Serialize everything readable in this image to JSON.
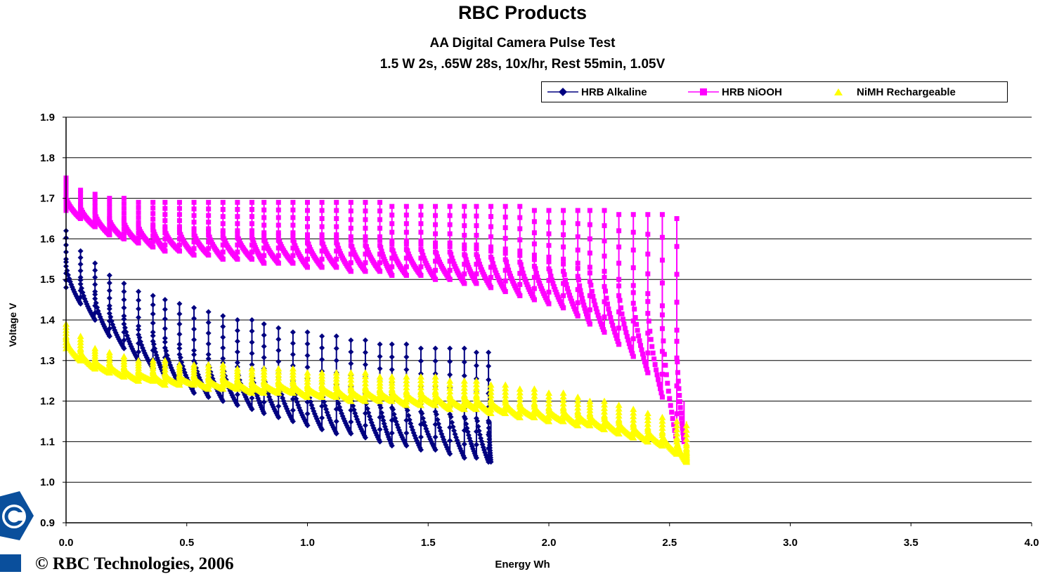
{
  "chart_data": {
    "type": "line",
    "title": "RBC Products",
    "subtitle": "AA Digital Camera Pulse Test",
    "subtitle2": "1.5 W 2s, .65W 28s, 10x/hr, Rest 55min, 1.05V",
    "xlabel": "Energy Wh",
    "ylabel": "Voltage V",
    "xlim": [
      0.0,
      4.0
    ],
    "ylim": [
      0.9,
      1.9
    ],
    "x_ticks": [
      "0.0",
      "0.5",
      "1.0",
      "1.5",
      "2.0",
      "2.5",
      "3.0",
      "3.5",
      "4.0"
    ],
    "y_ticks": [
      "0.9",
      "1.0",
      "1.1",
      "1.2",
      "1.3",
      "1.4",
      "1.5",
      "1.6",
      "1.7",
      "1.8",
      "1.9"
    ],
    "grid": "horizontal",
    "legend_position": "top-right",
    "series": [
      {
        "name": "HRB Alkaline",
        "color": "#000080",
        "marker": "diamond",
        "x_end": 1.76,
        "peak_x": [
          0.0,
          0.06,
          0.12,
          0.18,
          0.24,
          0.3,
          0.36,
          0.41,
          0.47,
          0.53,
          0.59,
          0.65,
          0.71,
          0.77,
          0.82,
          0.88,
          0.94,
          1.0,
          1.06,
          1.12,
          1.18,
          1.24,
          1.3,
          1.35,
          1.41,
          1.47,
          1.53,
          1.59,
          1.65,
          1.7,
          1.75
        ],
        "peak_y": [
          1.62,
          1.57,
          1.54,
          1.51,
          1.49,
          1.47,
          1.46,
          1.45,
          1.44,
          1.43,
          1.42,
          1.41,
          1.4,
          1.4,
          1.39,
          1.38,
          1.37,
          1.37,
          1.36,
          1.36,
          1.35,
          1.35,
          1.34,
          1.34,
          1.34,
          1.33,
          1.33,
          1.33,
          1.33,
          1.32,
          1.32
        ],
        "trough_y": [
          1.48,
          1.44,
          1.4,
          1.36,
          1.33,
          1.3,
          1.28,
          1.26,
          1.24,
          1.22,
          1.21,
          1.2,
          1.19,
          1.18,
          1.17,
          1.16,
          1.15,
          1.14,
          1.13,
          1.12,
          1.12,
          1.11,
          1.1,
          1.09,
          1.09,
          1.08,
          1.08,
          1.07,
          1.06,
          1.06,
          1.05
        ]
      },
      {
        "name": "HRB NiOOH",
        "color": "#FF00FF",
        "marker": "square",
        "x_end": 2.56,
        "peak_x": [
          0.0,
          0.06,
          0.12,
          0.18,
          0.24,
          0.3,
          0.36,
          0.41,
          0.47,
          0.53,
          0.59,
          0.65,
          0.71,
          0.77,
          0.82,
          0.88,
          0.94,
          1.0,
          1.06,
          1.12,
          1.18,
          1.24,
          1.3,
          1.35,
          1.41,
          1.47,
          1.53,
          1.59,
          1.65,
          1.7,
          1.76,
          1.82,
          1.88,
          1.94,
          2.0,
          2.06,
          2.12,
          2.17,
          2.23,
          2.29,
          2.35,
          2.41,
          2.47,
          2.53
        ],
        "peak_y": [
          1.75,
          1.72,
          1.71,
          1.7,
          1.7,
          1.69,
          1.69,
          1.69,
          1.69,
          1.69,
          1.69,
          1.69,
          1.69,
          1.69,
          1.69,
          1.69,
          1.69,
          1.69,
          1.69,
          1.69,
          1.69,
          1.69,
          1.69,
          1.68,
          1.68,
          1.68,
          1.68,
          1.68,
          1.68,
          1.68,
          1.68,
          1.68,
          1.68,
          1.67,
          1.67,
          1.67,
          1.67,
          1.67,
          1.67,
          1.66,
          1.66,
          1.66,
          1.66,
          1.65
        ],
        "trough_y": [
          1.67,
          1.65,
          1.63,
          1.61,
          1.6,
          1.59,
          1.58,
          1.57,
          1.57,
          1.56,
          1.56,
          1.55,
          1.55,
          1.55,
          1.54,
          1.54,
          1.54,
          1.53,
          1.53,
          1.53,
          1.52,
          1.52,
          1.52,
          1.51,
          1.51,
          1.51,
          1.5,
          1.5,
          1.49,
          1.49,
          1.48,
          1.47,
          1.46,
          1.45,
          1.44,
          1.43,
          1.41,
          1.39,
          1.37,
          1.34,
          1.31,
          1.27,
          1.21,
          1.1
        ]
      },
      {
        "name": "NiMH Rechargeable",
        "color": "#FFFF00",
        "marker": "triangle",
        "x_end": 2.57,
        "peak_x": [
          0.0,
          0.06,
          0.12,
          0.18,
          0.24,
          0.3,
          0.36,
          0.41,
          0.47,
          0.53,
          0.59,
          0.65,
          0.71,
          0.77,
          0.82,
          0.88,
          0.94,
          1.0,
          1.06,
          1.12,
          1.18,
          1.24,
          1.3,
          1.35,
          1.41,
          1.47,
          1.53,
          1.59,
          1.65,
          1.7,
          1.76,
          1.82,
          1.88,
          1.94,
          2.0,
          2.06,
          2.12,
          2.17,
          2.23,
          2.29,
          2.35,
          2.41,
          2.47,
          2.53,
          2.57
        ],
        "peak_y": [
          1.39,
          1.36,
          1.33,
          1.32,
          1.31,
          1.3,
          1.3,
          1.3,
          1.29,
          1.29,
          1.29,
          1.29,
          1.28,
          1.28,
          1.28,
          1.28,
          1.28,
          1.27,
          1.27,
          1.27,
          1.27,
          1.27,
          1.26,
          1.26,
          1.26,
          1.26,
          1.26,
          1.25,
          1.25,
          1.25,
          1.24,
          1.24,
          1.23,
          1.23,
          1.22,
          1.22,
          1.21,
          1.2,
          1.2,
          1.19,
          1.18,
          1.17,
          1.16,
          1.15,
          1.14
        ],
        "trough_y": [
          1.33,
          1.3,
          1.28,
          1.27,
          1.26,
          1.25,
          1.25,
          1.24,
          1.24,
          1.24,
          1.23,
          1.23,
          1.23,
          1.22,
          1.22,
          1.22,
          1.22,
          1.21,
          1.21,
          1.21,
          1.2,
          1.2,
          1.2,
          1.2,
          1.19,
          1.19,
          1.19,
          1.18,
          1.18,
          1.18,
          1.17,
          1.17,
          1.16,
          1.16,
          1.15,
          1.15,
          1.14,
          1.14,
          1.13,
          1.12,
          1.11,
          1.1,
          1.09,
          1.07,
          1.05
        ]
      }
    ]
  },
  "footer": {
    "copyright": "© RBC Technologies, 2006"
  }
}
